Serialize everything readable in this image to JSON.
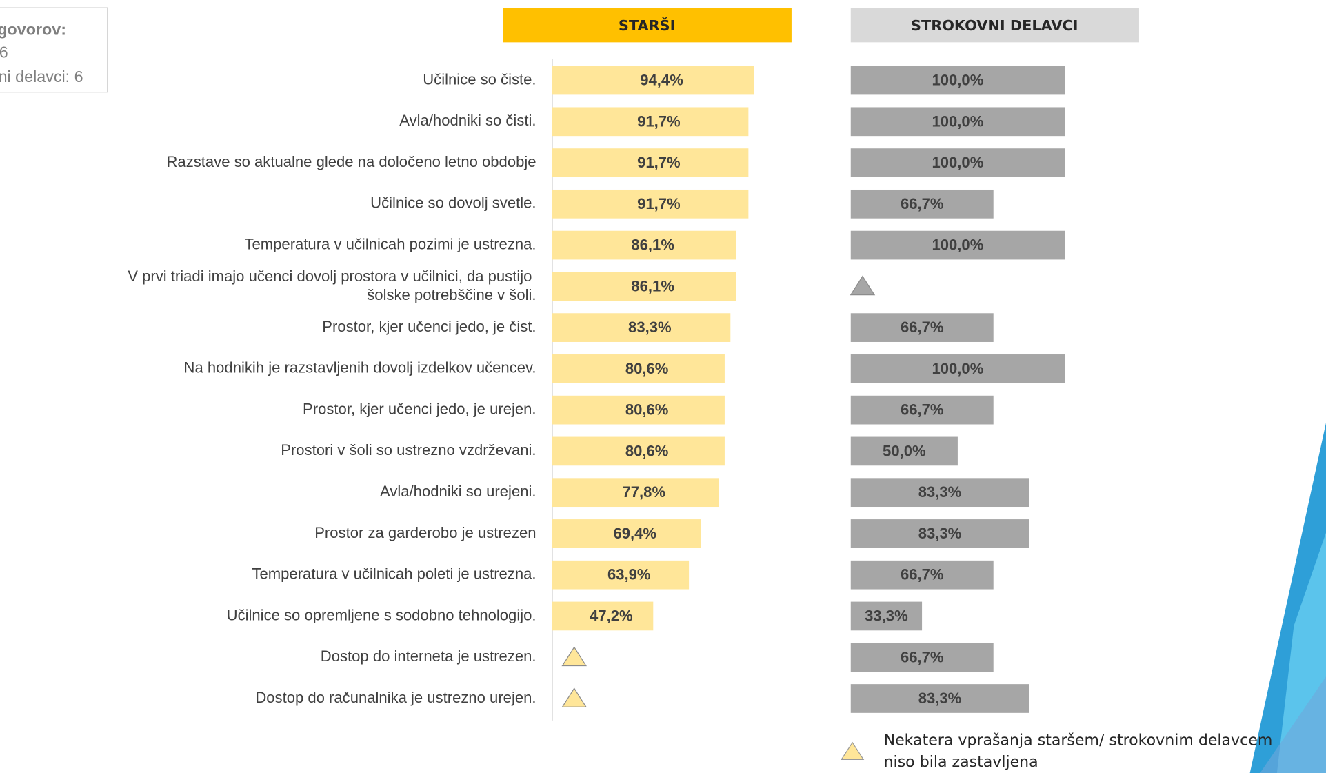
{
  "info_box": {
    "title": "govorov:",
    "lines": [
      "6",
      "ni delavci: 6"
    ]
  },
  "chart_data": [
    {
      "type": "bar",
      "title": "STARŠI",
      "title_color": "#ffc000",
      "color": "#ffe699",
      "xlim": [
        0,
        100
      ],
      "categories": [
        "Učilnice so čiste.",
        "Avla/hodniki so čisti.",
        "Razstave so aktualne glede na določeno letno obdobje",
        "Učilnice so dovolj svetle.",
        "Temperatura v učilnicah pozimi je ustrezna.",
        "V prvi triadi imajo učenci dovolj prostora v učilnici, da pustijo šolske potrebščine v šoli.",
        "Prostor, kjer učenci jedo,  je čist.",
        "Na hodnikih je razstavljenih dovolj izdelkov učencev.",
        "Prostor, kjer učenci jedo,  je urejen.",
        "Prostori v šoli so ustrezno vzdrževani.",
        "Avla/hodniki so urejeni.",
        "Prostor za garderobo je ustrezen",
        "Temperatura v učilnicah poleti je ustrezna.",
        "Učilnice so opremljene s sodobno tehnologijo.",
        "Dostop do interneta je ustrezen.",
        "Dostop do računalnika je ustrezno urejen."
      ],
      "values": [
        94.4,
        91.7,
        91.7,
        91.7,
        86.1,
        86.1,
        83.3,
        80.6,
        80.6,
        80.6,
        77.8,
        69.4,
        63.9,
        47.2,
        null,
        null
      ],
      "value_labels": [
        "94,4%",
        "91,7%",
        "91,7%",
        "91,7%",
        "86,1%",
        "86,1%",
        "83,3%",
        "80,6%",
        "80,6%",
        "80,6%",
        "77,8%",
        "69,4%",
        "63,9%",
        "47,2%",
        null,
        null
      ]
    },
    {
      "type": "bar",
      "title": "STROKOVNI DELAVCI",
      "title_color": "#d9d9d9",
      "color": "#a6a6a6",
      "xlim": [
        0,
        100
      ],
      "values": [
        100.0,
        100.0,
        100.0,
        66.7,
        100.0,
        null,
        66.7,
        100.0,
        66.7,
        50.0,
        83.3,
        83.3,
        66.7,
        33.3,
        66.7,
        83.3
      ],
      "value_labels": [
        "100,0%",
        "100,0%",
        "100,0%",
        "66,7%",
        "100,0%",
        null,
        "66,7%",
        "100,0%",
        "66,7%",
        "50,0%",
        "83,3%",
        "83,3%",
        "66,7%",
        "33,3%",
        "66,7%",
        "83,3%"
      ]
    }
  ],
  "note": [
    "Nekatera vprašanja staršem/ strokovnim delavcem",
    "niso bila zastavljena"
  ]
}
